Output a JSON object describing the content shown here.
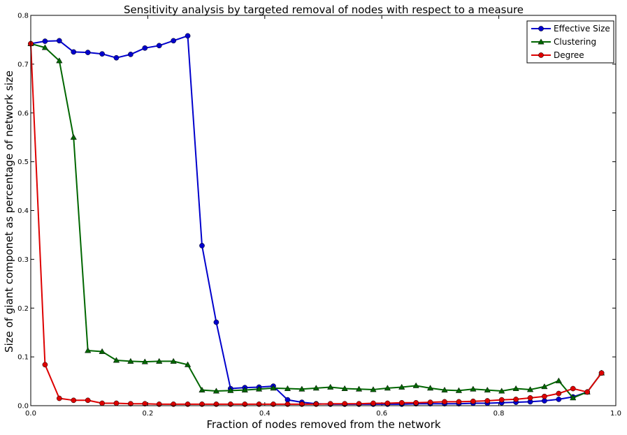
{
  "chart_data": {
    "type": "line",
    "title": "Sensitivity analysis by targeted removal of nodes with respect to a measure",
    "xlabel": "Fraction of nodes removed from the network",
    "ylabel": "Size of giant componet as percentage of network size",
    "xlim": [
      0.0,
      1.0
    ],
    "ylim": [
      0.0,
      0.8
    ],
    "xticks": [
      "0.0",
      "0.2",
      "0.4",
      "0.6",
      "0.8",
      "1.0"
    ],
    "yticks": [
      "0.0",
      "0.1",
      "0.2",
      "0.3",
      "0.4",
      "0.5",
      "0.6",
      "0.7",
      "0.8"
    ],
    "grid": false,
    "legend_position": "top-right",
    "x": [
      0.0,
      0.0244,
      0.0488,
      0.0732,
      0.0976,
      0.122,
      0.1463,
      0.1707,
      0.1951,
      0.2195,
      0.2439,
      0.2683,
      0.2927,
      0.3171,
      0.3415,
      0.3659,
      0.3902,
      0.4146,
      0.439,
      0.4634,
      0.4878,
      0.5122,
      0.5366,
      0.561,
      0.5854,
      0.6098,
      0.6341,
      0.6585,
      0.6829,
      0.7073,
      0.7317,
      0.7561,
      0.7805,
      0.8049,
      0.8293,
      0.8537,
      0.878,
      0.9024,
      0.9268,
      0.9512,
      0.9756
    ],
    "series": [
      {
        "name": "Effective Size",
        "color": "#0000cc",
        "marker": "circle",
        "values": [
          0.742,
          0.747,
          0.748,
          0.725,
          0.724,
          0.721,
          0.713,
          0.72,
          0.733,
          0.738,
          0.748,
          0.758,
          0.328,
          0.171,
          0.035,
          0.037,
          0.038,
          0.04,
          0.012,
          0.007,
          0.004,
          0.003,
          0.003,
          0.003,
          0.003,
          0.003,
          0.003,
          0.004,
          0.004,
          0.004,
          0.004,
          0.005,
          0.005,
          0.006,
          0.007,
          0.008,
          0.01,
          0.013,
          0.018,
          0.028,
          0.067
        ]
      },
      {
        "name": "Clustering",
        "color": "#006600",
        "marker": "triangle",
        "values": [
          0.742,
          0.734,
          0.707,
          0.55,
          0.113,
          0.111,
          0.093,
          0.091,
          0.09,
          0.091,
          0.091,
          0.084,
          0.032,
          0.03,
          0.031,
          0.032,
          0.034,
          0.036,
          0.035,
          0.034,
          0.036,
          0.038,
          0.035,
          0.034,
          0.033,
          0.036,
          0.038,
          0.041,
          0.036,
          0.032,
          0.031,
          0.034,
          0.032,
          0.03,
          0.035,
          0.033,
          0.039,
          0.051,
          0.016,
          0.028,
          0.067
        ]
      },
      {
        "name": "Degree",
        "color": "#dd0000",
        "marker": "circle",
        "values": [
          0.742,
          0.084,
          0.015,
          0.011,
          0.011,
          0.005,
          0.005,
          0.004,
          0.004,
          0.003,
          0.003,
          0.003,
          0.003,
          0.003,
          0.003,
          0.003,
          0.003,
          0.003,
          0.003,
          0.003,
          0.003,
          0.004,
          0.004,
          0.004,
          0.005,
          0.005,
          0.006,
          0.006,
          0.007,
          0.008,
          0.008,
          0.009,
          0.01,
          0.012,
          0.013,
          0.016,
          0.019,
          0.025,
          0.035,
          0.028,
          0.067
        ]
      }
    ]
  }
}
